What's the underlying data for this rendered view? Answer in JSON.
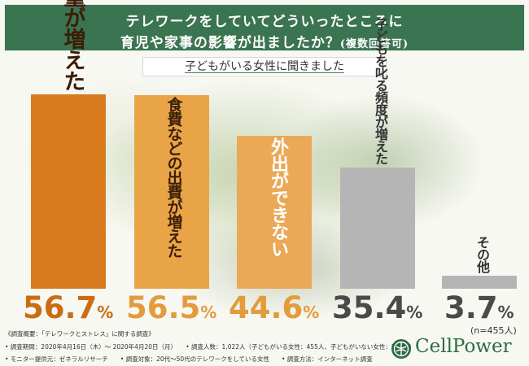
{
  "header": {
    "line1": "テレワークをしていてどういったところに",
    "line2": "育児や家事の影響が出ましたか？",
    "line2_sub": "(複数回答可)"
  },
  "subtitle": "子どもがいる女性に聞きました",
  "chart_data": {
    "type": "bar",
    "categories": [
      "家事をする量が増えた",
      "食費などの出費が増えた",
      "外出ができない",
      "子どもを叱る頻度が増えた",
      "その他"
    ],
    "values": [
      56.7,
      56.5,
      44.6,
      35.4,
      3.7
    ],
    "value_labels": [
      "56.7",
      "56.5",
      "44.6",
      "35.4",
      "3.7"
    ],
    "unit": "%",
    "colors": [
      "#d97c1f",
      "#e9a447",
      "#eba857",
      "#b5b5b5",
      "#b5b5b5"
    ],
    "label_colors": [
      "#3a1e06",
      "#3a1e06",
      "#ffffff",
      "#333333",
      "#333333"
    ],
    "pct_colors": [
      "#cc6c12",
      "#e39b3c",
      "#e39b3c",
      "#4a4a4a",
      "#4a4a4a"
    ],
    "ylim": [
      0,
      60
    ],
    "grid": false,
    "note": "(n=455人)"
  },
  "footer": {
    "line1": "《調査概要：「テレワークとストレス」に関する調査》",
    "line2": "• 調査期間：2020年4月16日（木）～ 2020年4月20日（月）　　• 調査人数：1,022人（子どもがいる女性：455人、子どもがいない女性：567人）",
    "line3": "• モニター提供元：ゼネラルリサーチ　　• 調査対象：20代〜50代のテレワークをしている女性　　• 調査方法：インターネット調査"
  },
  "logo": {
    "text": "CellPower",
    "icon": "cellpower-logo-icon",
    "color": "#2e6a44"
  }
}
